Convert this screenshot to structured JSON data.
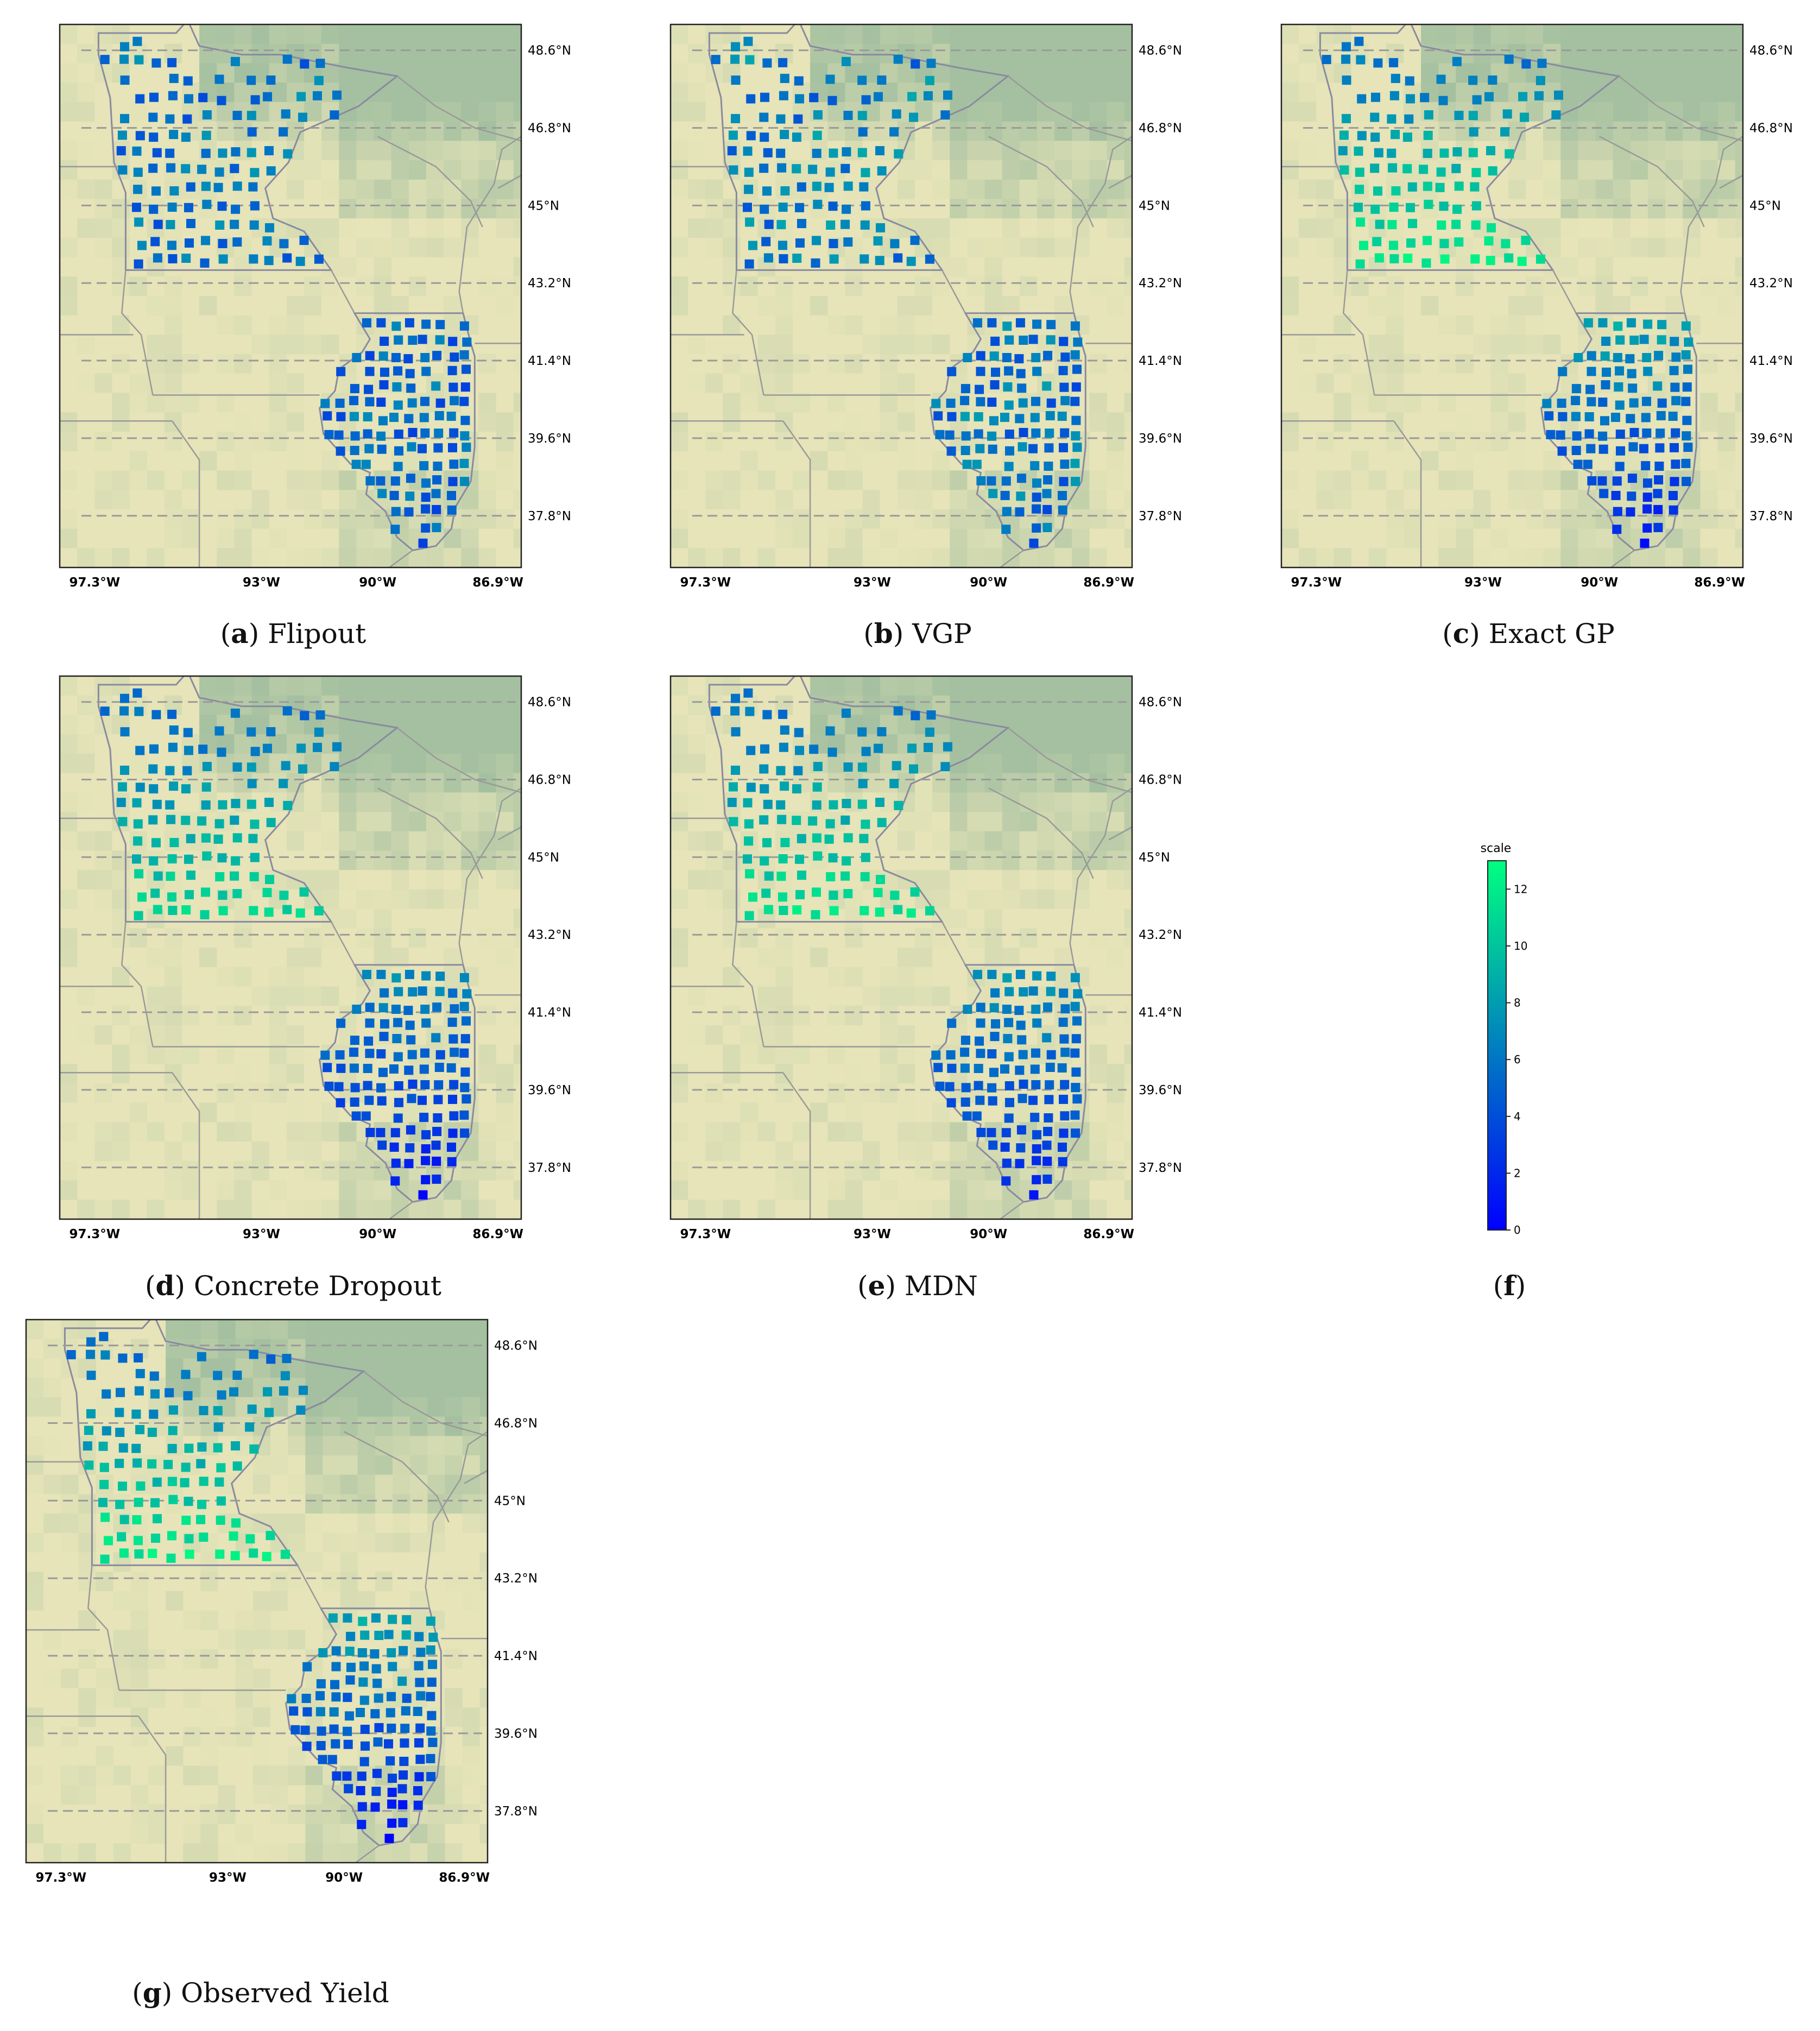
{
  "panels": [
    {
      "id": "a",
      "letter": "a",
      "title": "Flipout",
      "scheme": "flipout"
    },
    {
      "id": "b",
      "letter": "b",
      "title": "VGP",
      "scheme": "vgp"
    },
    {
      "id": "c",
      "letter": "c",
      "title": "Exact GP",
      "scheme": "exact"
    },
    {
      "id": "d",
      "letter": "d",
      "title": "Concrete Dropout",
      "scheme": "concrete"
    },
    {
      "id": "e",
      "letter": "e",
      "title": "MDN",
      "scheme": "mdn"
    },
    {
      "id": "g",
      "letter": "g",
      "title": "Observed Yield",
      "scheme": "observed"
    }
  ],
  "colorbar": {
    "letter": "f",
    "label": "scale",
    "ticks": [
      "0",
      "2",
      "4",
      "6",
      "8",
      "10",
      "12"
    ],
    "min": 0,
    "max": 13,
    "color_low": "#0000ff",
    "color_high": "#00ff80"
  },
  "lon_labels": [
    "97.3°W",
    "93°W",
    "90°W",
    "86.9°W"
  ],
  "lat_labels": [
    "48.6°N",
    "46.8°N",
    "45°N",
    "43.2°N",
    "41.4°N",
    "39.6°N",
    "37.8°N"
  ],
  "colors": {
    "land": "#e6e4b8",
    "forest": "#a9c3a1",
    "border": "#999999",
    "gridline": "#9a9a9a",
    "state_outline": "#8a8aa0"
  }
}
